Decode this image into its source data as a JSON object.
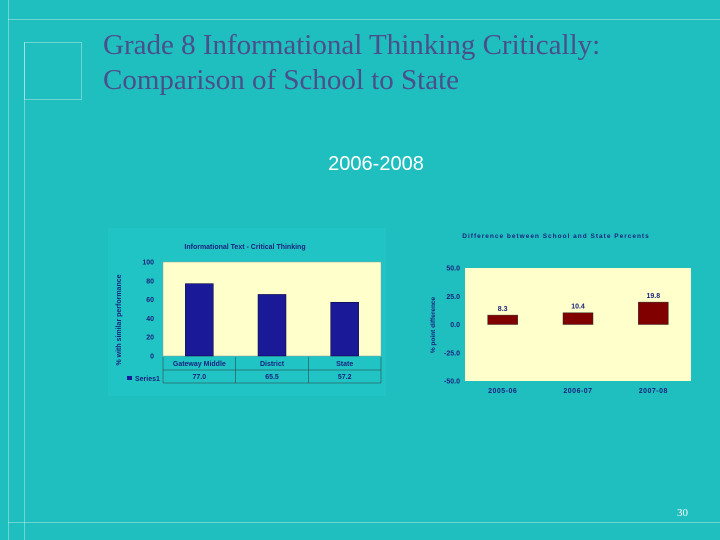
{
  "slide": {
    "title_line1": "Grade 8 Informational Thinking Critically:",
    "title_line2": "Comparison of School to State",
    "subtitle": "2006-2008",
    "page_number": "30"
  },
  "colors": {
    "background": "#1fbfbf",
    "title": "#4a4f8c",
    "plot_area": "#ffffcc",
    "bar_left": "#1a1a99",
    "bar_right": "#800000"
  },
  "chart_data": [
    {
      "type": "bar",
      "title": "Informational Text - Critical Thinking",
      "xlabel": "",
      "ylabel": "% with similar performance",
      "categories": [
        "Gateway Middle",
        "District",
        "State"
      ],
      "series": [
        {
          "name": "Series1",
          "values": [
            77.0,
            65.5,
            57.2
          ]
        }
      ],
      "value_labels": [
        "77.0",
        "65.5",
        "57.2"
      ],
      "ylim": [
        0,
        100
      ],
      "yticks": [
        "0",
        "20",
        "40",
        "60",
        "80",
        "100"
      ],
      "data_table": true,
      "grid": false
    },
    {
      "type": "bar",
      "title": "Difference between School and State Percents",
      "xlabel": "",
      "ylabel": "% point difference",
      "categories": [
        "2005-06",
        "2006-07",
        "2007-08"
      ],
      "series": [
        {
          "values": [
            8.3,
            10.4,
            19.8
          ]
        }
      ],
      "value_labels": [
        "8.3",
        "10.4",
        "19.8"
      ],
      "ylim": [
        -50,
        50
      ],
      "yticks": [
        "-50.0",
        "-25.0",
        "0.0",
        "25.0",
        "50.0"
      ],
      "grid": false
    }
  ]
}
